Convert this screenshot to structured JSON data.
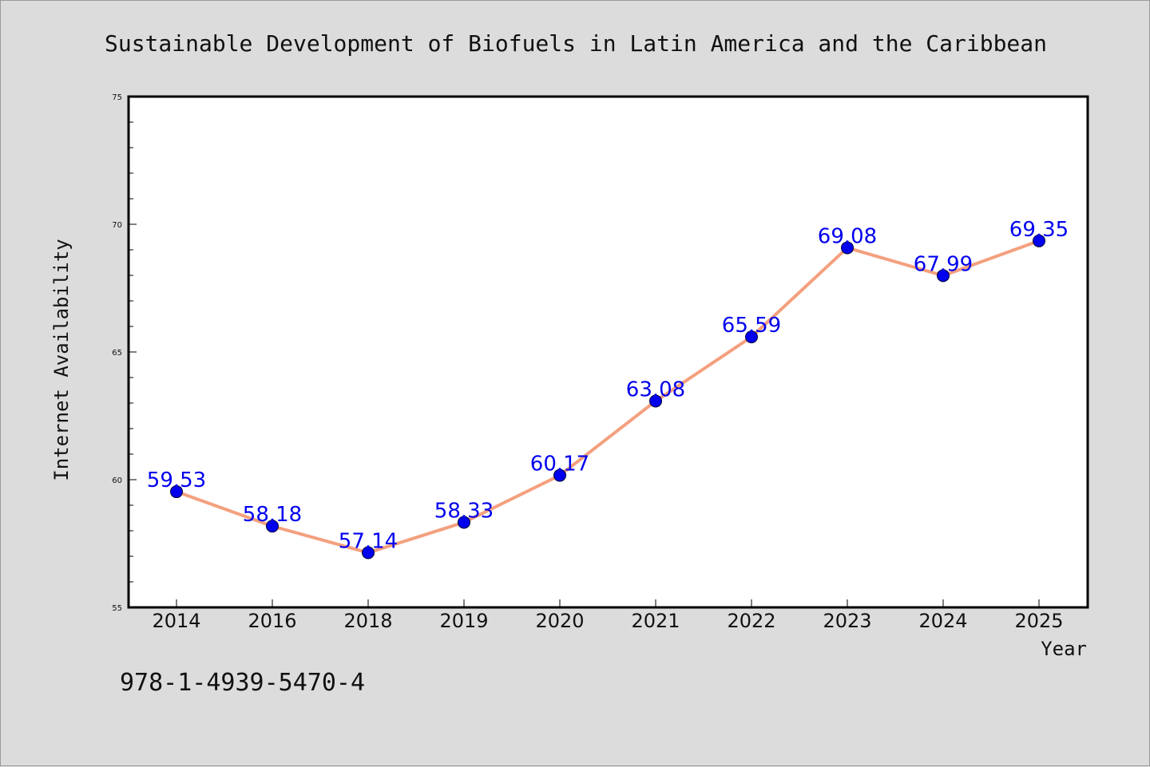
{
  "colors": {
    "background": "#dcdcdc",
    "plot_background": "#ffffff",
    "line": "#f4a07e",
    "marker": "#0000ee",
    "data_label": "#0000ee"
  },
  "footer": {
    "isbn": "978-1-4939-5470-4"
  },
  "chart_data": {
    "type": "line",
    "title": "Sustainable Development of Biofuels in Latin America and the Caribbean",
    "xlabel": "Year",
    "ylabel": "Internet Availability",
    "categories": [
      "2014",
      "2016",
      "2018",
      "2019",
      "2020",
      "2021",
      "2022",
      "2023",
      "2024",
      "2025"
    ],
    "series": [
      {
        "values": [
          59.53,
          58.18,
          57.14,
          58.33,
          60.17,
          63.08,
          65.59,
          69.08,
          67.99,
          69.35
        ],
        "labels": [
          "59.53",
          "58.18",
          "57.14",
          "58.33",
          "60.17",
          "63.08",
          "65.59",
          "69.08",
          "67.99",
          "69.35"
        ]
      }
    ],
    "ylim": [
      55,
      75
    ],
    "yticks": [
      "55",
      "60",
      "65",
      "70",
      "75"
    ],
    "grid": false,
    "legend": "none"
  }
}
